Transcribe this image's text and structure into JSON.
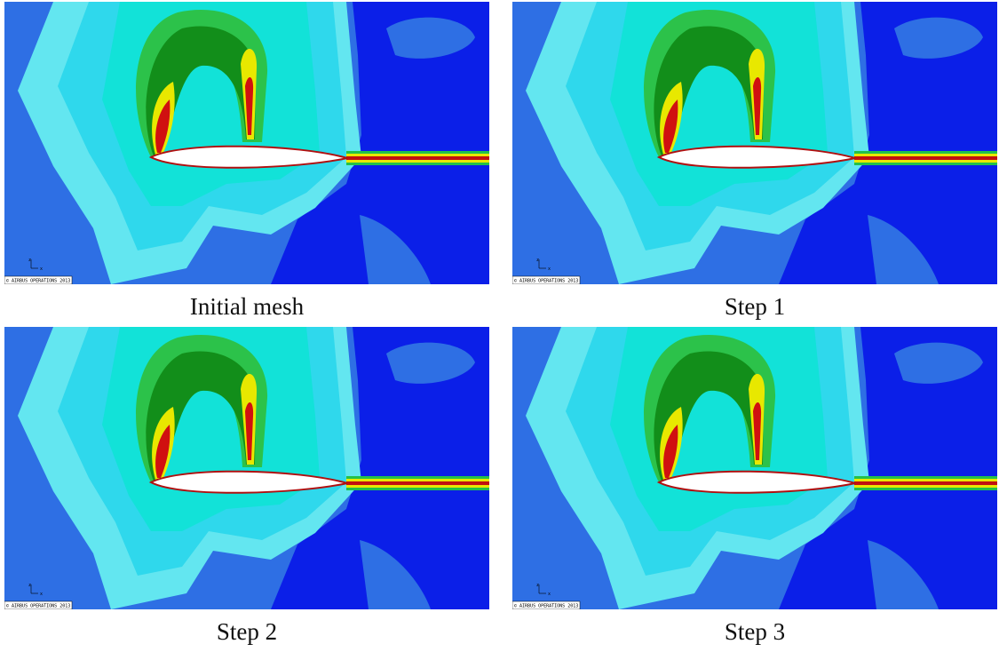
{
  "panels": [
    {
      "caption": "Initial mesh",
      "copyright": "© AIRBUS OPERATIONS 2013",
      "axis_z": "z",
      "axis_x": "x"
    },
    {
      "caption": "Step 1",
      "copyright": "© AIRBUS OPERATIONS 2013",
      "axis_z": "z",
      "axis_x": "x"
    },
    {
      "caption": "Step 2",
      "copyright": "© AIRBUS OPERATIONS 2013",
      "axis_z": "z",
      "axis_x": "x"
    },
    {
      "caption": "Step 3",
      "copyright": "© AIRBUS OPERATIONS 2013",
      "axis_z": "z",
      "axis_x": "x"
    }
  ]
}
